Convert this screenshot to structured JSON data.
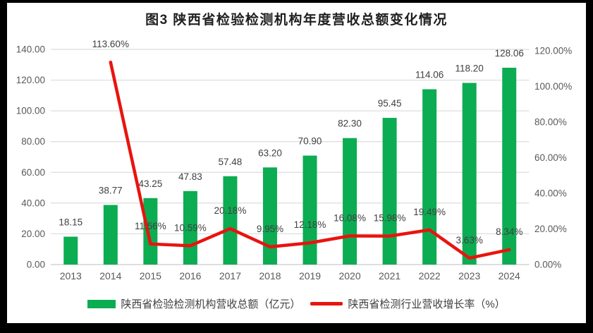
{
  "title": "图3  陕西省检验检测机构年度营收总额变化情况",
  "legend": {
    "bars": "陕西省检验检测机构营收总额（亿元）",
    "line": "陕西省检测行业营收增长率（%）"
  },
  "colors": {
    "bar": "#0cac52",
    "line": "#e8140f",
    "grid": "#dcdcdc",
    "axis_line": "#c9c9c9",
    "axis_text": "#595959",
    "label_text": "#404040",
    "frame": "#000000",
    "background": "#ffffff"
  },
  "chart_data": {
    "type": "bar",
    "subtype": "bar+line combo, dual axis",
    "title": "图3  陕西省检验检测机构年度营收总额变化情况",
    "categories": [
      "2013",
      "2014",
      "2015",
      "2016",
      "2017",
      "2018",
      "2019",
      "2020",
      "2021",
      "2022",
      "2023",
      "2024"
    ],
    "series": [
      {
        "name": "陕西省检验检测机构营收总额（亿元）",
        "type": "bar",
        "axis": "left",
        "values": [
          18.15,
          38.77,
          43.25,
          47.83,
          57.48,
          63.2,
          70.9,
          82.3,
          95.45,
          114.06,
          118.2,
          128.06
        ],
        "labels": [
          "18.15",
          "38.77",
          "43.25",
          "47.83",
          "57.48",
          "63.20",
          "70.90",
          "82.30",
          "95.45",
          "114.06",
          "118.20",
          "128.06"
        ]
      },
      {
        "name": "陕西省检测行业营收增长率（%）",
        "type": "line",
        "axis": "right",
        "values": [
          null,
          113.6,
          11.56,
          10.59,
          20.18,
          9.95,
          12.18,
          16.08,
          15.98,
          19.49,
          3.63,
          8.34
        ],
        "labels": [
          null,
          "113.60%",
          "11.56%",
          "10.59%",
          "20.18%",
          "9.95%",
          "12.18%",
          "16.08%",
          "15.98%",
          "19.49%",
          "3.63%",
          "8.34%"
        ]
      }
    ],
    "left_axis": {
      "min": 0,
      "max": 140,
      "step": 20,
      "ticks": [
        "0.00",
        "20.00",
        "40.00",
        "60.00",
        "80.00",
        "100.00",
        "120.00",
        "140.00"
      ]
    },
    "right_axis": {
      "min": 0,
      "max": 120,
      "step": 20,
      "ticks": [
        "0.00%",
        "20.00%",
        "40.00%",
        "60.00%",
        "80.00%",
        "100.00%",
        "120.00%"
      ]
    },
    "grid": true,
    "legend_position": "bottom"
  }
}
